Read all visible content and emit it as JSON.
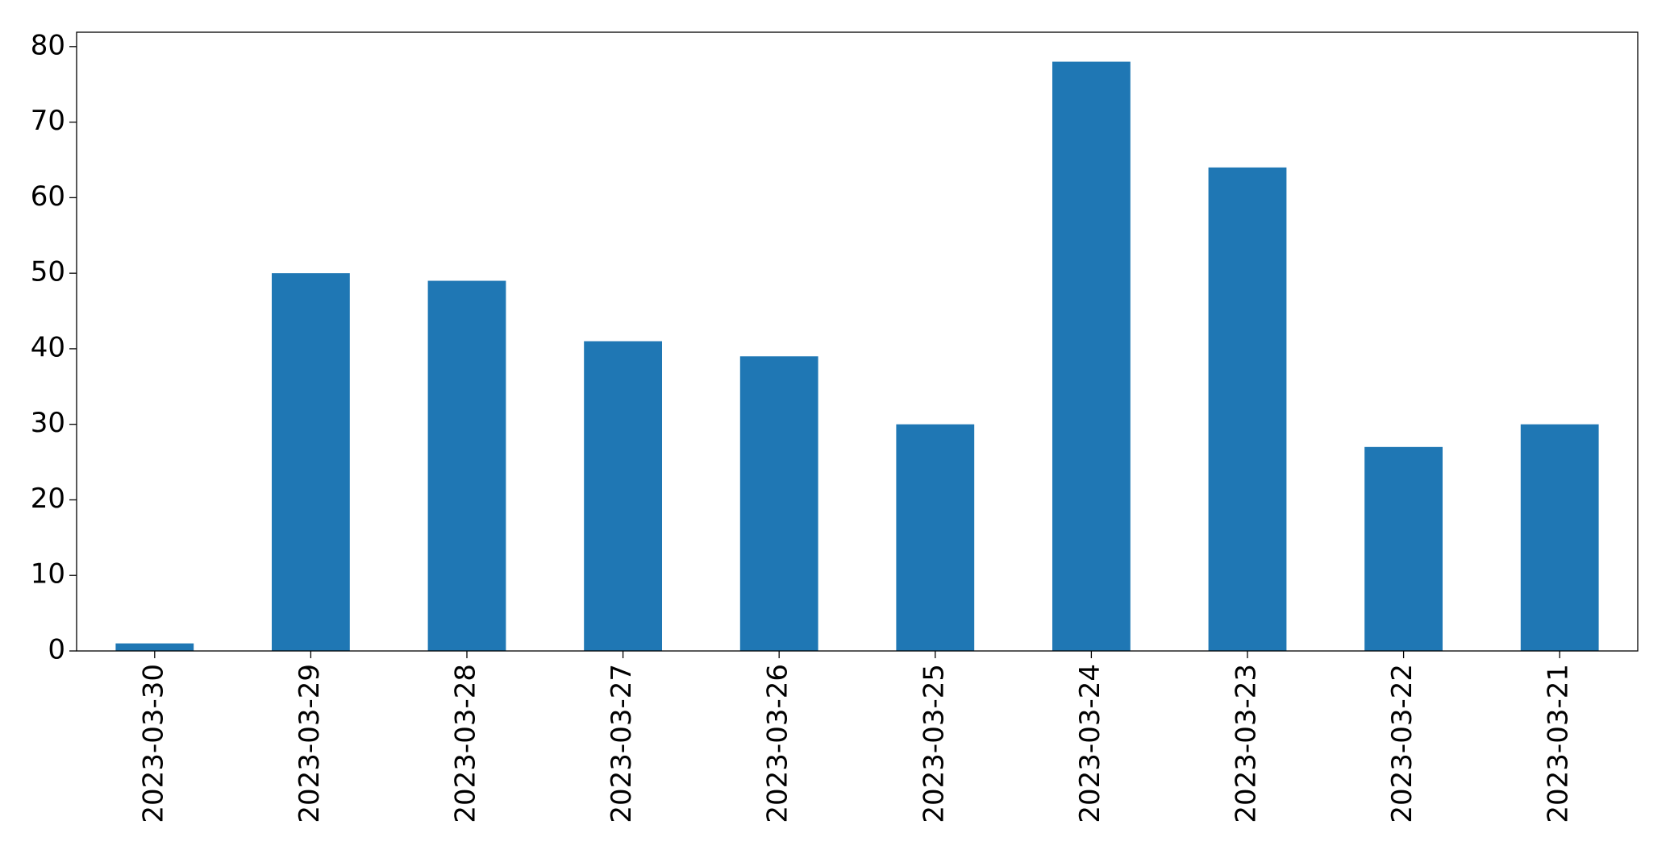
{
  "chart_data": {
    "type": "bar",
    "categories": [
      "2023-03-30",
      "2023-03-29",
      "2023-03-28",
      "2023-03-27",
      "2023-03-26",
      "2023-03-25",
      "2023-03-24",
      "2023-03-23",
      "2023-03-22",
      "2023-03-21"
    ],
    "values": [
      1,
      50,
      49,
      41,
      39,
      30,
      78,
      64,
      27,
      30
    ],
    "color": "#1f77b4",
    "ylim": [
      0,
      81.9
    ],
    "yticks": [
      0,
      10,
      20,
      30,
      40,
      50,
      60,
      70,
      80
    ],
    "grid": false
  }
}
